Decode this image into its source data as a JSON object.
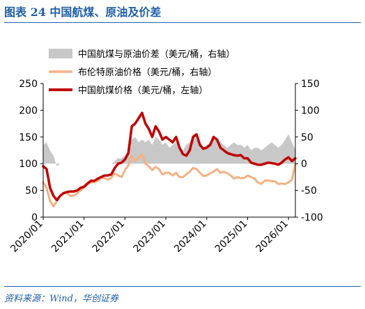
{
  "figure": {
    "title": "图表 24 中国航煤、原油及价差",
    "source": "资料来源：Wind，华创证券"
  },
  "chart_data": {
    "type": "line",
    "x_tick_labels": [
      "2020/01",
      "2021/01",
      "2022/01",
      "2023/01",
      "2024/01",
      "2025/01",
      "2026/01"
    ],
    "x_range": [
      "2020-01",
      "2026-03"
    ],
    "y_left": {
      "ticks": [
        0,
        50,
        100,
        150,
        200,
        250
      ],
      "range": [
        0,
        250
      ]
    },
    "y_right": {
      "ticks": [
        -100,
        -50,
        0,
        50,
        100,
        150
      ],
      "range": [
        -100,
        150
      ]
    },
    "grid": false,
    "legend_position": "top",
    "series": [
      {
        "name": "中国航煤与原油价差（美元/桶，右轴）",
        "type": "area",
        "axis": "right",
        "color": "#c8c8c8",
        "x": [
          "2020-01",
          "2020-02",
          "2020-03",
          "2020-04",
          "2020-05",
          "2020-06",
          "2020-07",
          "2020-08",
          "2020-09",
          "2020-10",
          "2020-11",
          "2020-12",
          "2021-01",
          "2021-02",
          "2021-03",
          "2021-04",
          "2021-05",
          "2021-06",
          "2021-07",
          "2021-08",
          "2021-09",
          "2021-10",
          "2021-11",
          "2021-12",
          "2022-01",
          "2022-02",
          "2022-03",
          "2022-04",
          "2022-05",
          "2022-06",
          "2022-07",
          "2022-08",
          "2022-09",
          "2022-10",
          "2022-11",
          "2022-12",
          "2023-01",
          "2023-02",
          "2023-03",
          "2023-04",
          "2023-05",
          "2023-06",
          "2023-07",
          "2023-08",
          "2023-09",
          "2023-10",
          "2023-11",
          "2023-12",
          "2024-01",
          "2024-02",
          "2024-03",
          "2024-04",
          "2024-05",
          "2024-06",
          "2024-07",
          "2024-08",
          "2024-09",
          "2024-10",
          "2024-11",
          "2024-12",
          "2025-01",
          "2025-02",
          "2025-03",
          "2025-04",
          "2025-05",
          "2025-06",
          "2025-07",
          "2025-08",
          "2025-09",
          "2025-10",
          "2025-11",
          "2025-12",
          "2026-01",
          "2026-02",
          "2026-03"
        ],
        "values": [
          35,
          40,
          25,
          15,
          -5,
          0,
          0,
          0,
          0,
          0,
          0,
          0,
          0,
          0,
          0,
          0,
          0,
          0,
          0,
          0,
          0,
          5,
          10,
          10,
          15,
          25,
          45,
          50,
          40,
          45,
          40,
          45,
          35,
          50,
          45,
          35,
          40,
          30,
          35,
          40,
          30,
          25,
          35,
          40,
          55,
          45,
          40,
          30,
          35,
          40,
          50,
          45,
          40,
          35,
          30,
          35,
          40,
          35,
          35,
          30,
          35,
          25,
          30,
          30,
          25,
          30,
          35,
          40,
          35,
          30,
          35,
          45,
          55,
          40,
          25
        ]
      },
      {
        "name": "布伦特原油价格（美元/桶，右轴）",
        "type": "line",
        "axis": "right",
        "color": "#f4b183",
        "x": [
          "2020-01",
          "2020-02",
          "2020-03",
          "2020-04",
          "2020-05",
          "2020-06",
          "2020-07",
          "2020-08",
          "2020-09",
          "2020-10",
          "2020-11",
          "2020-12",
          "2021-01",
          "2021-02",
          "2021-03",
          "2021-04",
          "2021-05",
          "2021-06",
          "2021-07",
          "2021-08",
          "2021-09",
          "2021-10",
          "2021-11",
          "2021-12",
          "2022-01",
          "2022-02",
          "2022-03",
          "2022-04",
          "2022-05",
          "2022-06",
          "2022-07",
          "2022-08",
          "2022-09",
          "2022-10",
          "2022-11",
          "2022-12",
          "2023-01",
          "2023-02",
          "2023-03",
          "2023-04",
          "2023-05",
          "2023-06",
          "2023-07",
          "2023-08",
          "2023-09",
          "2023-10",
          "2023-11",
          "2023-12",
          "2024-01",
          "2024-02",
          "2024-03",
          "2024-04",
          "2024-05",
          "2024-06",
          "2024-07",
          "2024-08",
          "2024-09",
          "2024-10",
          "2024-11",
          "2024-12",
          "2025-01",
          "2025-02",
          "2025-03",
          "2025-04",
          "2025-05",
          "2025-06",
          "2025-07",
          "2025-08",
          "2025-09",
          "2025-10",
          "2025-11",
          "2025-12",
          "2026-01",
          "2026-02",
          "2026-03"
        ],
        "values": [
          -35,
          -45,
          -70,
          -80,
          -70,
          -60,
          -55,
          -55,
          -60,
          -60,
          -55,
          -50,
          -45,
          -38,
          -35,
          -35,
          -32,
          -27,
          -27,
          -30,
          -26,
          -18,
          -22,
          -25,
          -12,
          -3,
          15,
          5,
          10,
          18,
          0,
          -5,
          -12,
          -6,
          -10,
          -20,
          -17,
          -17,
          -22,
          -17,
          -25,
          -25,
          -20,
          -15,
          -8,
          -10,
          -17,
          -23,
          -22,
          -18,
          -15,
          -10,
          -17,
          -15,
          -18,
          -22,
          -28,
          -25,
          -27,
          -27,
          -22,
          -25,
          -28,
          -35,
          -38,
          -32,
          -31,
          -33,
          -33,
          -38,
          -37,
          -38,
          -35,
          -30,
          0
        ]
      },
      {
        "name": "中国航煤价格（美元/桶，左轴）",
        "type": "line",
        "axis": "left",
        "color": "#c00000",
        "x": [
          "2020-01",
          "2020-02",
          "2020-03",
          "2020-04",
          "2020-05",
          "2020-06",
          "2020-07",
          "2020-08",
          "2020-09",
          "2020-10",
          "2020-11",
          "2020-12",
          "2021-01",
          "2021-02",
          "2021-03",
          "2021-04",
          "2021-05",
          "2021-06",
          "2021-07",
          "2021-08",
          "2021-09",
          "2021-10",
          "2021-11",
          "2021-12",
          "2022-01",
          "2022-02",
          "2022-03",
          "2022-04",
          "2022-05",
          "2022-06",
          "2022-07",
          "2022-08",
          "2022-09",
          "2022-10",
          "2022-11",
          "2022-12",
          "2023-01",
          "2023-02",
          "2023-03",
          "2023-04",
          "2023-05",
          "2023-06",
          "2023-07",
          "2023-08",
          "2023-09",
          "2023-10",
          "2023-11",
          "2023-12",
          "2024-01",
          "2024-02",
          "2024-03",
          "2024-04",
          "2024-05",
          "2024-06",
          "2024-07",
          "2024-08",
          "2024-09",
          "2024-10",
          "2024-11",
          "2024-12",
          "2025-01",
          "2025-02",
          "2025-03",
          "2025-04",
          "2025-05",
          "2025-06",
          "2025-07",
          "2025-08",
          "2025-09",
          "2025-10",
          "2025-11",
          "2025-12",
          "2026-01",
          "2026-02",
          "2026-03"
        ],
        "values": [
          95,
          90,
          55,
          40,
          32,
          40,
          45,
          47,
          48,
          48,
          50,
          55,
          57,
          63,
          68,
          68,
          72,
          75,
          78,
          78,
          80,
          92,
          100,
          102,
          108,
          120,
          170,
          175,
          185,
          195,
          175,
          165,
          150,
          170,
          160,
          145,
          150,
          145,
          140,
          150,
          130,
          118,
          115,
          125,
          150,
          155,
          135,
          128,
          130,
          135,
          150,
          145,
          130,
          125,
          120,
          118,
          116,
          115,
          116,
          110,
          110,
          102,
          100,
          98,
          98,
          100,
          102,
          101,
          100,
          98,
          102,
          108,
          112,
          105,
          110
        ]
      }
    ]
  }
}
